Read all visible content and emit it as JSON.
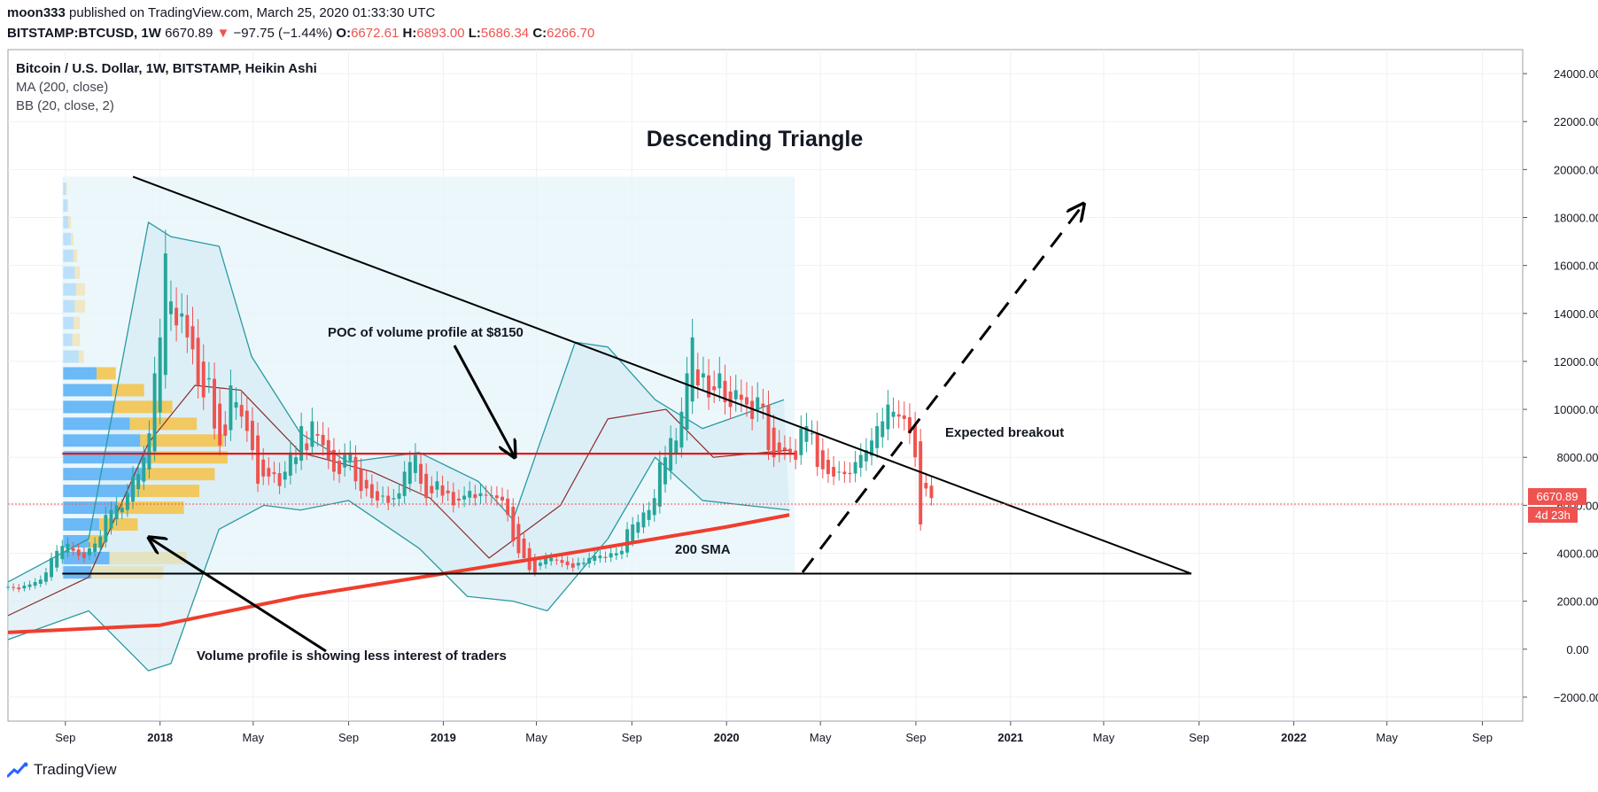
{
  "header": {
    "author": "moon333",
    "published": " published on TradingView.com, March 25, 2020 01:33:30 UTC",
    "symbol": "BITSTAMP:BTCUSD, 1W",
    "last": "6670.89",
    "down_arrow": "▼",
    "change": "−97.75 (−1.44%)",
    "o_label": "O:",
    "o": "6672.61",
    "h_label": "H:",
    "h": "6893.00",
    "l_label": "L:",
    "l": "5686.34",
    "c_label": "C:",
    "c": "6266.70"
  },
  "legend": {
    "series": "Bitcoin / U.S. Dollar, 1W, BITSTAMP, Heikin Ashi",
    "ma": "MA (200, close)",
    "bb": "BB (20, close, 2)"
  },
  "footer": {
    "brand": "TradingView"
  },
  "colors": {
    "up": "#26a69a",
    "down": "#ef5350",
    "ma": "#ef3e2e",
    "bb": "#2a9aa0",
    "bb_basis": "#8b2b2b",
    "vp_blue": "#64b5f6",
    "vp_yellow": "#f5c245",
    "poc": "#e4191a",
    "grid": "#eef1f5"
  },
  "chart_data": {
    "type": "candlestick",
    "title": "Descending Triangle",
    "y_ticks": [
      "24000.00",
      "22000.00",
      "20000.00",
      "18000.00",
      "16000.00",
      "14000.00",
      "12000.00",
      "10000.00",
      "8000.00",
      "6000.00",
      "4000.00",
      "2000.00",
      "0.00",
      "−2000.00"
    ],
    "ylim": [
      -3000,
      25000
    ],
    "x_ticks": [
      "Sep",
      "2018",
      "May",
      "Sep",
      "2019",
      "May",
      "Sep",
      "2020",
      "May",
      "Sep",
      "2021",
      "May",
      "Sep",
      "2022",
      "May",
      "Sep"
    ],
    "xlim": [
      "2017-06-19",
      "2022-10-23"
    ],
    "price_label": "6670.89",
    "countdown_label": "4d 23h",
    "close_series": {
      "start": "2017-06-19",
      "interval_days": 7,
      "values": [
        2600,
        2550,
        2500,
        2650,
        2700,
        2800,
        2900,
        3200,
        3800,
        4100,
        4300,
        4400,
        4100,
        3900,
        3800,
        4200,
        4400,
        4700,
        5600,
        5800,
        6000,
        5900,
        6500,
        7200,
        7300,
        8000,
        9000,
        11500,
        13000,
        16500,
        14500,
        13500,
        14000,
        13000,
        12500,
        11000,
        10500,
        11300,
        9200,
        8500,
        8900,
        11000,
        10300,
        9700,
        9100,
        8300,
        6900,
        7200,
        7200,
        7300,
        6800,
        7400,
        8200,
        8000,
        9300,
        8300,
        9500,
        8900,
        8500,
        7900,
        7400,
        7300,
        8100,
        8200,
        7000,
        6600,
        6700,
        6300,
        6200,
        6400,
        6100,
        6300,
        6500,
        7400,
        7800,
        8100,
        6900,
        6300,
        6500,
        7000,
        6400,
        6500,
        6000,
        6200,
        6400,
        6600,
        6300,
        6500,
        6400,
        6400,
        6300,
        6200,
        5600,
        4500,
        4000,
        3800,
        3300,
        3200,
        3600,
        3800,
        3800,
        3700,
        3600,
        3500,
        3400,
        3600,
        3600,
        3800,
        3900,
        3900,
        3800,
        4000,
        4000,
        4100,
        5000,
        5200,
        5300,
        5700,
        5800,
        6300,
        7800,
        8000,
        8800,
        8700,
        9900,
        11500,
        13000,
        11000,
        11500,
        10500,
        10800,
        11500,
        10300,
        10100,
        10800,
        10400,
        10200,
        9600,
        10500,
        10100,
        8300,
        8000,
        8200,
        8300,
        8200,
        7900,
        9200,
        9300,
        9000,
        7600,
        7500,
        7300,
        7200,
        7400,
        7300,
        7300,
        7800,
        8100,
        8300,
        8700,
        9300,
        9500,
        10200,
        9900,
        9700,
        9600,
        9000,
        8000,
        5200,
        6700,
        6300
      ]
    },
    "indicators": {
      "sma200": {
        "x": [
          "2017-06-19",
          "2018-01-01",
          "2018-07-01",
          "2019-01-01",
          "2019-07-01",
          "2020-01-01",
          "2020-03-22"
        ],
        "y": [
          700,
          1000,
          2200,
          3150,
          4100,
          5100,
          5600
        ]
      },
      "bb_upper": {
        "x": [
          "2017-06-19",
          "2017-10-01",
          "2017-12-17",
          "2018-01-15",
          "2018-03-18",
          "2018-04-29",
          "2018-07-01",
          "2018-09-01",
          "2018-12-01",
          "2019-02-15",
          "2019-04-01",
          "2019-06-20",
          "2019-08-01",
          "2019-10-01",
          "2019-12-01",
          "2020-03-15"
        ],
        "y": [
          2800,
          4600,
          17800,
          17200,
          16800,
          12200,
          9000,
          7800,
          8200,
          7000,
          5400,
          12800,
          12600,
          10400,
          9200,
          10400
        ]
      },
      "bb_basis": {
        "x": [
          "2017-06-19",
          "2017-10-01",
          "2017-12-17",
          "2018-02-15",
          "2018-04-15",
          "2018-07-01",
          "2018-10-01",
          "2018-12-15",
          "2019-03-01",
          "2019-06-01",
          "2019-08-01",
          "2019-10-15",
          "2019-12-15",
          "2020-03-22"
        ],
        "y": [
          1400,
          3000,
          8600,
          11000,
          10800,
          8200,
          7400,
          6300,
          3800,
          6000,
          9600,
          10000,
          8000,
          8300
        ]
      },
      "bb_lower": {
        "x": [
          "2017-06-19",
          "2017-10-01",
          "2017-12-17",
          "2018-01-15",
          "2018-03-18",
          "2018-05-15",
          "2018-07-01",
          "2018-09-01",
          "2018-12-01",
          "2019-02-01",
          "2019-04-01",
          "2019-05-15",
          "2019-08-01",
          "2019-10-01",
          "2019-12-01",
          "2020-03-22"
        ],
        "y": [
          400,
          1600,
          -900,
          -600,
          5000,
          6000,
          5800,
          6200,
          4200,
          2200,
          2000,
          1600,
          4600,
          8000,
          6200,
          5800
        ]
      }
    },
    "volume_profile": {
      "rows": [
        {
          "price": 19200,
          "buy": 2,
          "sell": 1
        },
        {
          "price": 18500,
          "buy": 3,
          "sell": 1
        },
        {
          "price": 17800,
          "buy": 4,
          "sell": 2
        },
        {
          "price": 17100,
          "buy": 6,
          "sell": 2
        },
        {
          "price": 16400,
          "buy": 8,
          "sell": 3
        },
        {
          "price": 15700,
          "buy": 9,
          "sell": 4
        },
        {
          "price": 15000,
          "buy": 10,
          "sell": 7
        },
        {
          "price": 14300,
          "buy": 9,
          "sell": 8
        },
        {
          "price": 13600,
          "buy": 8,
          "sell": 5
        },
        {
          "price": 12900,
          "buy": 7,
          "sell": 6
        },
        {
          "price": 12200,
          "buy": 12,
          "sell": 4
        },
        {
          "price": 11500,
          "buy": 26,
          "sell": 15
        },
        {
          "price": 10800,
          "buy": 38,
          "sell": 25
        },
        {
          "price": 10100,
          "buy": 40,
          "sell": 45
        },
        {
          "price": 9400,
          "buy": 52,
          "sell": 52
        },
        {
          "price": 8700,
          "buy": 60,
          "sell": 65
        },
        {
          "price": 8000,
          "buy": 68,
          "sell": 60
        },
        {
          "price": 7300,
          "buy": 64,
          "sell": 54
        },
        {
          "price": 6600,
          "buy": 56,
          "sell": 50
        },
        {
          "price": 5900,
          "buy": 42,
          "sell": 52
        },
        {
          "price": 5200,
          "buy": 28,
          "sell": 30
        },
        {
          "price": 4500,
          "buy": 20,
          "sell": 12
        },
        {
          "price": 3800,
          "buy": 36,
          "sell": 60
        },
        {
          "price": 3200,
          "buy": 22,
          "sell": 56
        }
      ],
      "poc_price": 8150
    },
    "drawings": {
      "triangle_top": {
        "from": [
          "2017-11-27",
          19700
        ],
        "to": [
          "2021-08-22",
          3150
        ]
      },
      "triangle_base": {
        "from": [
          "2017-08-28",
          3150
        ],
        "to": [
          "2021-08-22",
          3150
        ]
      },
      "poc_line": {
        "from": [
          "2017-08-28",
          8150
        ],
        "to": [
          "2020-03-29",
          8150
        ]
      }
    },
    "annotations": [
      {
        "text": "Descending Triangle",
        "kind": "title"
      },
      {
        "text": "POC of volume profile at $8150"
      },
      {
        "text": "Expected breakout"
      },
      {
        "text": "200 SMA"
      },
      {
        "text": "Volume profile is showing less interest of traders"
      }
    ]
  }
}
